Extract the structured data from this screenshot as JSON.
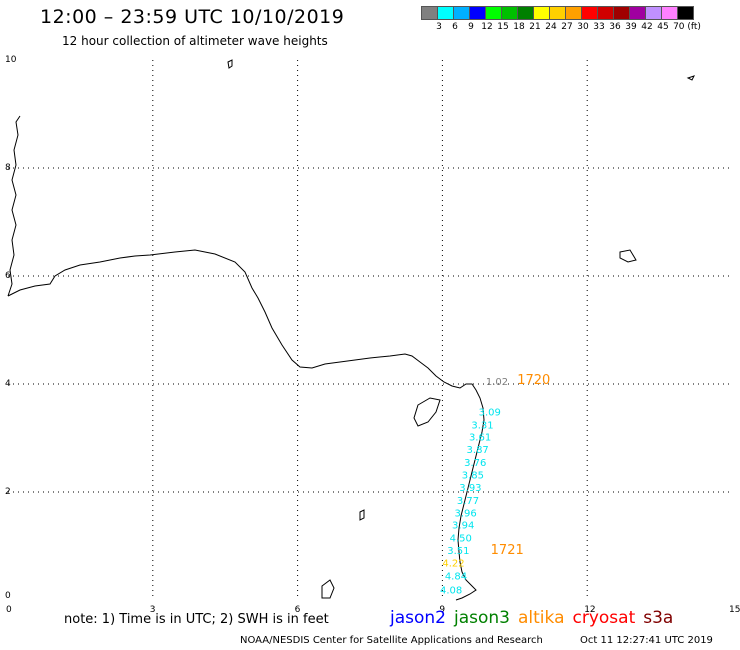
{
  "header": {
    "title": "12:00 – 23:59 UTC 10/10/2019",
    "subtitle": "12 hour collection of altimeter wave heights"
  },
  "colorbar": {
    "colors": [
      "#808080",
      "#00ffff",
      "#00b0ff",
      "#0000ff",
      "#00ff00",
      "#00c000",
      "#008000",
      "#ffff00",
      "#ffd000",
      "#ffa000",
      "#ff0000",
      "#d00000",
      "#a00000",
      "#a000a0",
      "#c090ff",
      "#ff80ff",
      "#000000"
    ],
    "labels": [
      "3",
      "6",
      "9",
      "12",
      "15",
      "18",
      "21",
      "24",
      "27",
      "30",
      "33",
      "36",
      "39",
      "42",
      "45",
      "70 (ft)"
    ]
  },
  "axes": {
    "x_ticks": [
      "0",
      "3",
      "6",
      "9",
      "12",
      "15"
    ],
    "y_ticks": [
      "0",
      "2",
      "4",
      "6",
      "8",
      "10"
    ]
  },
  "tracks": {
    "labels": [
      {
        "text": "1.02",
        "color": "#808080",
        "x": 9.9,
        "y": 3.98
      },
      {
        "text": "3.09",
        "color": "#00e5ee",
        "x": 9.75,
        "y": 3.42
      },
      {
        "text": "3.31",
        "color": "#00e5ee",
        "x": 9.6,
        "y": 3.18
      },
      {
        "text": "3.61",
        "color": "#00e5ee",
        "x": 9.55,
        "y": 2.95
      },
      {
        "text": "3.87",
        "color": "#00e5ee",
        "x": 9.5,
        "y": 2.72
      },
      {
        "text": "3.76",
        "color": "#00e5ee",
        "x": 9.45,
        "y": 2.48
      },
      {
        "text": "3.85",
        "color": "#00e5ee",
        "x": 9.4,
        "y": 2.25
      },
      {
        "text": "3.93",
        "color": "#00e5ee",
        "x": 9.35,
        "y": 2.02
      },
      {
        "text": "3.77",
        "color": "#00e5ee",
        "x": 9.3,
        "y": 1.78
      },
      {
        "text": "3.96",
        "color": "#00e5ee",
        "x": 9.25,
        "y": 1.55
      },
      {
        "text": "3.94",
        "color": "#00e5ee",
        "x": 9.2,
        "y": 1.32
      },
      {
        "text": "4.50",
        "color": "#00e5ee",
        "x": 9.15,
        "y": 1.08
      },
      {
        "text": "3.51",
        "color": "#00e5ee",
        "x": 9.1,
        "y": 0.85
      },
      {
        "text": "4.22",
        "color": "#ffd000",
        "x": 9.0,
        "y": 0.62
      },
      {
        "text": "4.84",
        "color": "#00e5ee",
        "x": 9.05,
        "y": 0.38
      },
      {
        "text": "4.08",
        "color": "#00e5ee",
        "x": 8.95,
        "y": 0.12
      }
    ],
    "time_labels": [
      {
        "text": "1720",
        "color": "#ff8c00",
        "x": 10.55,
        "y": 4.0
      },
      {
        "text": "1721",
        "color": "#ff8c00",
        "x": 10.0,
        "y": 0.85
      }
    ]
  },
  "note": "note: 1) Time is in UTC; 2) SWH is in feet",
  "legend": [
    {
      "text": "jason2",
      "color": "#0000ff"
    },
    {
      "text": "jason3",
      "color": "#008000"
    },
    {
      "text": "altika",
      "color": "#ff8c00"
    },
    {
      "text": "cryosat",
      "color": "#ff0000"
    },
    {
      "text": "s3a",
      "color": "#800000"
    }
  ],
  "footer": {
    "credit": "NOAA/NESDIS Center for Satellite Applications and Research",
    "timestamp": "Oct 11 12:27:41 UTC 2019"
  }
}
